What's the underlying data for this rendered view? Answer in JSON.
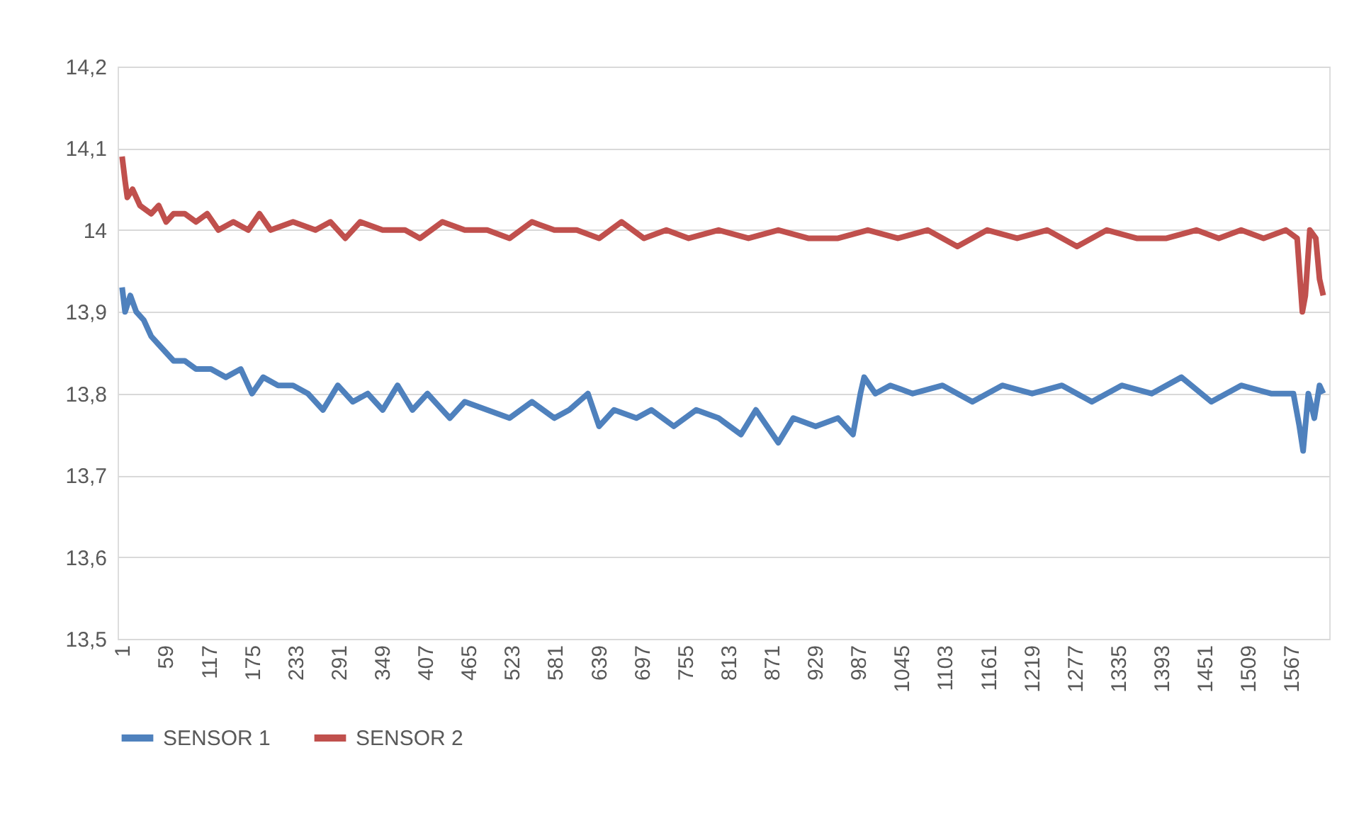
{
  "chart_data": {
    "type": "line",
    "xlim": [
      -5,
      1618
    ],
    "xticks": [
      1,
      59,
      117,
      175,
      233,
      291,
      349,
      407,
      465,
      523,
      581,
      639,
      697,
      755,
      813,
      871,
      929,
      987,
      1045,
      1103,
      1161,
      1219,
      1277,
      1335,
      1393,
      1451,
      1509,
      1567
    ],
    "ylim": [
      13.5,
      14.2
    ],
    "yticks": [
      {
        "value": 13.5,
        "label": "13,5"
      },
      {
        "value": 13.6,
        "label": "13,6"
      },
      {
        "value": 13.7,
        "label": "13,7"
      },
      {
        "value": 13.8,
        "label": "13,8"
      },
      {
        "value": 13.9,
        "label": "13,9"
      },
      {
        "value": 14,
        "label": "14"
      },
      {
        "value": 14.1,
        "label": "14,1"
      },
      {
        "value": 14.2,
        "label": "14,2"
      }
    ],
    "grid": "y",
    "legend": "bottom",
    "line_style": "solid",
    "marker": "none",
    "series": [
      {
        "name": "SENSOR 1",
        "color": "#4f81bd",
        "x": [
          1,
          5,
          12,
          20,
          30,
          40,
          50,
          60,
          70,
          85,
          100,
          120,
          140,
          160,
          175,
          190,
          210,
          230,
          250,
          270,
          290,
          310,
          330,
          350,
          370,
          390,
          410,
          440,
          460,
          490,
          520,
          550,
          580,
          600,
          625,
          640,
          660,
          690,
          710,
          740,
          770,
          800,
          830,
          850,
          880,
          900,
          930,
          960,
          980,
          990,
          995,
          1010,
          1030,
          1060,
          1100,
          1140,
          1180,
          1220,
          1260,
          1300,
          1340,
          1380,
          1420,
          1460,
          1500,
          1540,
          1570,
          1578,
          1583,
          1590,
          1598,
          1605,
          1610
        ],
        "values": [
          13.93,
          13.9,
          13.92,
          13.9,
          13.89,
          13.87,
          13.86,
          13.85,
          13.84,
          13.84,
          13.83,
          13.83,
          13.82,
          13.83,
          13.8,
          13.82,
          13.81,
          13.81,
          13.8,
          13.78,
          13.81,
          13.79,
          13.8,
          13.78,
          13.81,
          13.78,
          13.8,
          13.77,
          13.79,
          13.78,
          13.77,
          13.79,
          13.77,
          13.78,
          13.8,
          13.76,
          13.78,
          13.77,
          13.78,
          13.76,
          13.78,
          13.77,
          13.75,
          13.78,
          13.74,
          13.77,
          13.76,
          13.77,
          13.75,
          13.8,
          13.82,
          13.8,
          13.81,
          13.8,
          13.81,
          13.79,
          13.81,
          13.8,
          13.81,
          13.79,
          13.81,
          13.8,
          13.82,
          13.79,
          13.81,
          13.8,
          13.8,
          13.76,
          13.73,
          13.8,
          13.77,
          13.81,
          13.8
        ]
      },
      {
        "name": "SENSOR 2",
        "color": "#c0504d",
        "x": [
          1,
          5,
          8,
          15,
          25,
          40,
          50,
          60,
          70,
          85,
          100,
          115,
          130,
          150,
          170,
          185,
          200,
          230,
          260,
          280,
          300,
          320,
          350,
          380,
          400,
          430,
          460,
          490,
          520,
          550,
          580,
          610,
          640,
          670,
          700,
          730,
          760,
          800,
          840,
          880,
          920,
          960,
          1000,
          1040,
          1080,
          1120,
          1160,
          1200,
          1240,
          1280,
          1320,
          1360,
          1400,
          1440,
          1470,
          1500,
          1530,
          1560,
          1575,
          1582,
          1586,
          1592,
          1600,
          1605,
          1610
        ],
        "values": [
          14.09,
          14.06,
          14.04,
          14.05,
          14.03,
          14.02,
          14.03,
          14.01,
          14.02,
          14.02,
          14.01,
          14.02,
          14.0,
          14.01,
          14.0,
          14.02,
          14.0,
          14.01,
          14.0,
          14.01,
          13.99,
          14.01,
          14.0,
          14.0,
          13.99,
          14.01,
          14.0,
          14.0,
          13.99,
          14.01,
          14.0,
          14.0,
          13.99,
          14.01,
          13.99,
          14.0,
          13.99,
          14.0,
          13.99,
          14.0,
          13.99,
          13.99,
          14.0,
          13.99,
          14.0,
          13.98,
          14.0,
          13.99,
          14.0,
          13.98,
          14.0,
          13.99,
          13.99,
          14.0,
          13.99,
          14.0,
          13.99,
          14.0,
          13.99,
          13.9,
          13.92,
          14.0,
          13.99,
          13.94,
          13.92
        ]
      }
    ]
  }
}
